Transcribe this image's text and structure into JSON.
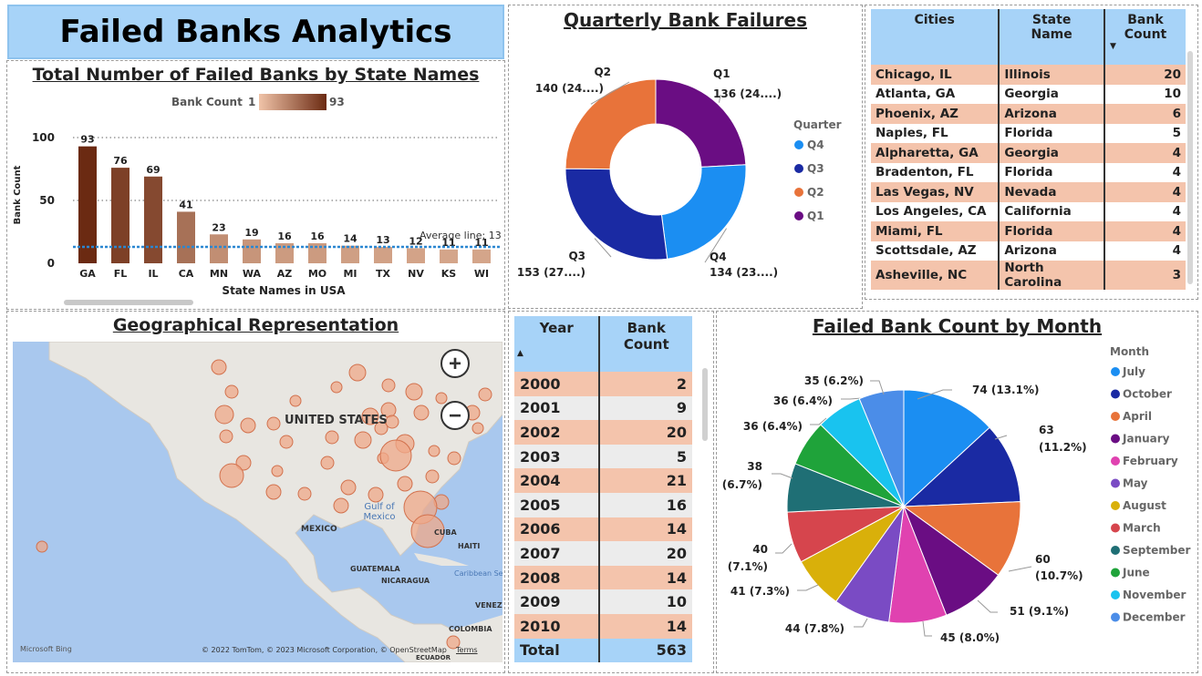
{
  "dashboard_title": "Failed Banks Analytics",
  "colors": {
    "header_blue": "#a7d3f8",
    "row_peach": "#f4c4ac",
    "bar_dark": "#6b2a12",
    "bar_light": "#e9b79b",
    "avg_line": "#2b87d1"
  },
  "state_chart": {
    "title": "Total Number of Failed Banks by State Names",
    "legend_label": "Bank Count",
    "legend_min": "1",
    "legend_max": "93",
    "avg_label": "Average line: 13"
  },
  "quarter_chart": {
    "title": "Quarterly Bank Failures",
    "legend_title": "Quarter"
  },
  "month_chart": {
    "title": "Failed Bank Count by Month",
    "legend_title": "Month"
  },
  "map": {
    "title": "Geographical Representation",
    "labels": {
      "us": "UNITED STATES",
      "gulf": "Gulf of Mexico",
      "mexico": "MEXICO",
      "cuba": "CUBA",
      "haiti": "HAITI",
      "guatemala": "GUATEMALA",
      "nicaragua": "NICARAGUA",
      "caribbean": "Caribbean Se",
      "venez": "VENEZ",
      "colombia": "COLOMBIA",
      "ecuador": "ECUADOR",
      "bing": "Microsoft Bing",
      "copyright": "© 2022 TomTom, © 2023 Microsoft Corporation, © OpenStreetMap",
      "terms": "Terms"
    },
    "zoom_in": "+",
    "zoom_out": "−"
  },
  "cities_table": {
    "headers": [
      "Cities",
      "State Name",
      "Bank Count"
    ],
    "rows": [
      {
        "city": "Chicago, IL",
        "state": "Illinois",
        "count": "20"
      },
      {
        "city": "Atlanta, GA",
        "state": "Georgia",
        "count": "10"
      },
      {
        "city": "Phoenix, AZ",
        "state": "Arizona",
        "count": "6"
      },
      {
        "city": "Naples, FL",
        "state": "Florida",
        "count": "5"
      },
      {
        "city": "Alpharetta, GA",
        "state": "Georgia",
        "count": "4"
      },
      {
        "city": "Bradenton, FL",
        "state": "Florida",
        "count": "4"
      },
      {
        "city": "Las Vegas, NV",
        "state": "Nevada",
        "count": "4"
      },
      {
        "city": "Los Angeles, CA",
        "state": "California",
        "count": "4"
      },
      {
        "city": "Miami, FL",
        "state": "Florida",
        "count": "4"
      },
      {
        "city": "Scottsdale, AZ",
        "state": "Arizona",
        "count": "4"
      },
      {
        "city": "Asheville, NC",
        "state": "North Carolina",
        "count": "3"
      }
    ]
  },
  "year_table": {
    "headers": [
      "Year",
      "Bank Count"
    ],
    "rows": [
      {
        "year": "2000",
        "count": "2"
      },
      {
        "year": "2001",
        "count": "9"
      },
      {
        "year": "2002",
        "count": "20"
      },
      {
        "year": "2003",
        "count": "5"
      },
      {
        "year": "2004",
        "count": "21"
      },
      {
        "year": "2005",
        "count": "16"
      },
      {
        "year": "2006",
        "count": "14"
      },
      {
        "year": "2007",
        "count": "20"
      },
      {
        "year": "2008",
        "count": "14"
      },
      {
        "year": "2009",
        "count": "10"
      },
      {
        "year": "2010",
        "count": "14"
      }
    ],
    "total_label": "Total",
    "total_value": "563"
  },
  "chart_data": [
    {
      "type": "bar",
      "title": "Total Number of Failed Banks by State Names",
      "xlabel": "State Names in USA",
      "ylabel": "Bank Count",
      "categories": [
        "GA",
        "FL",
        "IL",
        "CA",
        "MN",
        "WA",
        "AZ",
        "MO",
        "MI",
        "TX",
        "NV",
        "KS",
        "WI"
      ],
      "values": [
        93,
        76,
        69,
        41,
        23,
        19,
        16,
        16,
        14,
        13,
        12,
        11,
        11
      ],
      "yticks": [
        0,
        50,
        100
      ],
      "ylim": [
        0,
        105
      ],
      "average_line": 13,
      "color_scale": [
        1,
        93
      ]
    },
    {
      "type": "pie",
      "subtype": "donut",
      "title": "Quarterly Bank Failures",
      "legend_title": "Quarter",
      "legend": [
        "Q4",
        "Q3",
        "Q2",
        "Q1"
      ],
      "slices": [
        {
          "label": "Q1",
          "value": 136,
          "display": "136 (24....)",
          "color": "#6a0d83"
        },
        {
          "label": "Q4",
          "value": 134,
          "display": "134 (23....)",
          "color": "#1b8ef2"
        },
        {
          "label": "Q3",
          "value": 153,
          "display": "153 (27....)",
          "color": "#1a2aa3"
        },
        {
          "label": "Q2",
          "value": 140,
          "display": "140 (24....)",
          "color": "#e8733a"
        }
      ]
    },
    {
      "type": "pie",
      "title": "Failed Bank Count by Month",
      "legend_title": "Month",
      "slices": [
        {
          "label": "July",
          "value": 74,
          "display": "74 (13.1%)",
          "color": "#1b8ef2"
        },
        {
          "label": "October",
          "value": 63,
          "display": "63 (11.2%)",
          "color": "#1a2aa3"
        },
        {
          "label": "April",
          "value": 60,
          "display": "60 (10.7%)",
          "color": "#e8733a"
        },
        {
          "label": "January",
          "value": 51,
          "display": "51 (9.1%)",
          "color": "#6a0d83"
        },
        {
          "label": "February",
          "value": 45,
          "display": "45 (8.0%)",
          "color": "#e042b0"
        },
        {
          "label": "May",
          "value": 44,
          "display": "44 (7.8%)",
          "color": "#7a4bc4"
        },
        {
          "label": "August",
          "value": 41,
          "display": "41 (7.3%)",
          "color": "#d9b00a"
        },
        {
          "label": "March",
          "value": 40,
          "display": "40 (7.1%)",
          "color": "#d6454d"
        },
        {
          "label": "September",
          "value": 38,
          "display": "38 (6.7%)",
          "color": "#1f6f75"
        },
        {
          "label": "June",
          "value": 36,
          "display": "36 (6.4%)",
          "color": "#1fa33a"
        },
        {
          "label": "November",
          "value": 36,
          "display": "36 (6.4%)",
          "color": "#19c3ef"
        },
        {
          "label": "December",
          "value": 35,
          "display": "35 (6.2%)",
          "color": "#4b8de8"
        }
      ]
    }
  ]
}
